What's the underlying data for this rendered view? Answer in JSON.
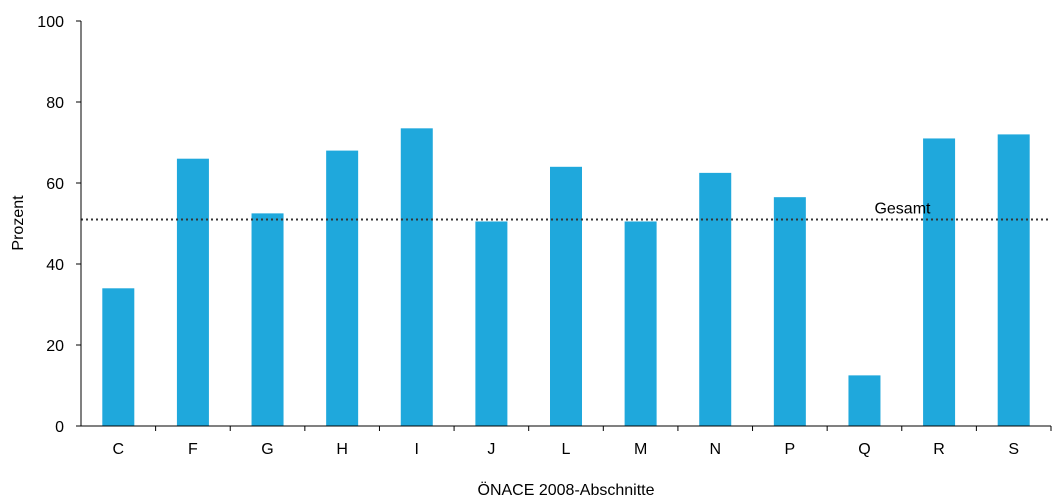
{
  "chart_data": {
    "type": "bar",
    "title": "",
    "xlabel": "ÖNACE 2008-Abschnitte",
    "ylabel": "Prozent",
    "categories": [
      "C",
      "F",
      "G",
      "H",
      "I",
      "J",
      "L",
      "M",
      "N",
      "P",
      "Q",
      "R",
      "S"
    ],
    "values": [
      34,
      66,
      52.5,
      68,
      73.5,
      50.5,
      64,
      50.5,
      62.5,
      56.5,
      12.5,
      71,
      72
    ],
    "ylim": [
      0,
      100
    ],
    "yticks": [
      0,
      20,
      40,
      60,
      80,
      100
    ],
    "grid": false,
    "legend": "none",
    "bar_color": "#1fa8dc",
    "reference_line": {
      "label": "Gesamt",
      "value": 51,
      "style": "dotted"
    }
  }
}
